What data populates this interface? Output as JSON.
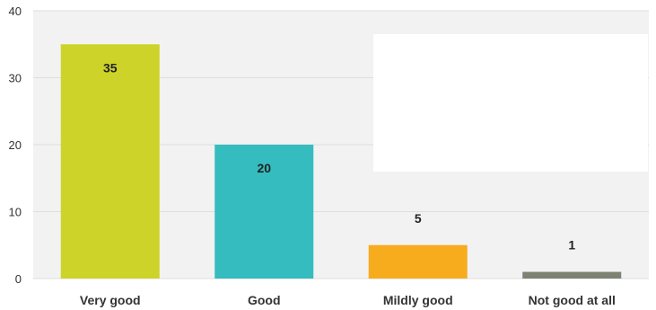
{
  "chart_data": {
    "type": "bar",
    "categories": [
      "Very good",
      "Good",
      "Mildly good",
      "Not good at all"
    ],
    "values": [
      35,
      20,
      5,
      1
    ],
    "value_labels": [
      "35",
      "20",
      "5",
      "1"
    ],
    "ylim": [
      0,
      40
    ],
    "yticks": [
      0,
      10,
      20,
      30,
      40
    ],
    "ytick_labels": [
      "0",
      "10",
      "20",
      "30",
      "40"
    ],
    "grid": true,
    "bar_colors": [
      "#cdd328",
      "#35bcbf",
      "#f7ac1e",
      "#7d8273"
    ],
    "plot_background": "#f2f2f2"
  }
}
